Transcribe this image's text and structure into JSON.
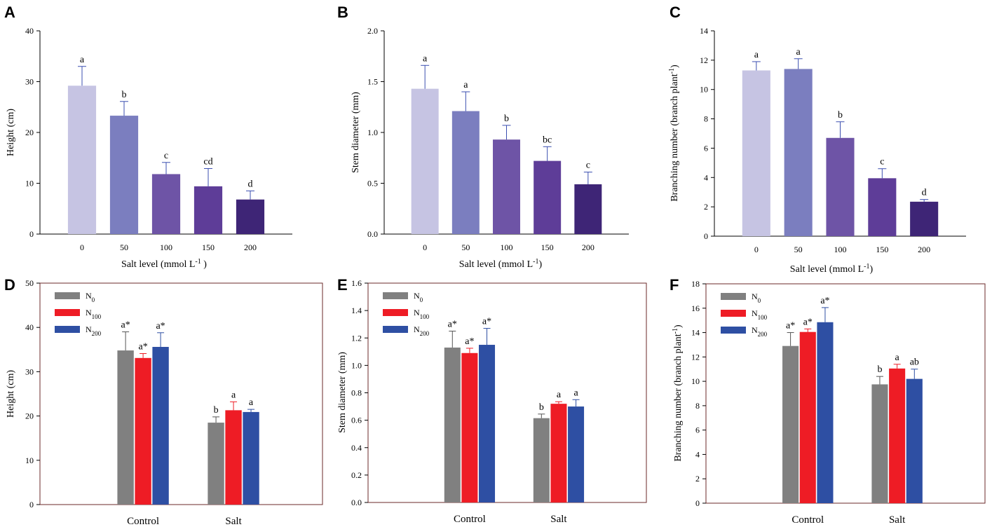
{
  "chart_data": [
    {
      "panel": "A",
      "type": "bar",
      "xlabel": "Salt level (mmol L",
      "xlabel_sup": "-1",
      "xlabel_end": " )",
      "ylabel": "Height (cm)",
      "ylim": [
        0,
        40
      ],
      "yticks": [
        "0",
        "10",
        "20",
        "30",
        "40"
      ],
      "categories": [
        "0",
        "50",
        "100",
        "150",
        "200"
      ],
      "values": [
        29.2,
        23.3,
        11.8,
        9.4,
        6.8
      ],
      "errors": [
        3.8,
        2.8,
        2.3,
        3.5,
        1.7
      ],
      "labels": [
        "a",
        "b",
        "c",
        "cd",
        "d"
      ],
      "colors": [
        "#c6c4e3",
        "#7b7ebf",
        "#6e54a6",
        "#5e3d98",
        "#3e2576"
      ]
    },
    {
      "panel": "B",
      "type": "bar",
      "xlabel": "Salt level (mmol L",
      "xlabel_sup": "-1",
      "xlabel_end": ")",
      "ylabel": "Stem diameter (mm)",
      "ylim": [
        0,
        2.0
      ],
      "yticks": [
        "0.0",
        "0.5",
        "1.0",
        "1.5",
        "2.0"
      ],
      "categories": [
        "0",
        "50",
        "100",
        "150",
        "200"
      ],
      "values": [
        1.43,
        1.21,
        0.93,
        0.72,
        0.49
      ],
      "errors": [
        0.23,
        0.19,
        0.14,
        0.14,
        0.12
      ],
      "labels": [
        "a",
        "a",
        "b",
        "bc",
        "c"
      ],
      "colors": [
        "#c6c4e3",
        "#7b7ebf",
        "#6e54a6",
        "#5e3d98",
        "#3e2576"
      ]
    },
    {
      "panel": "C",
      "type": "bar",
      "xlabel": "Salt level (mmol L",
      "xlabel_sup": "-1",
      "xlabel_end": ")",
      "ylabel": "Branching number (branch plant",
      "ylabel_sup": "-1",
      "ylabel_end": ")",
      "ylim": [
        0,
        14
      ],
      "yticks": [
        "0",
        "2",
        "4",
        "6",
        "8",
        "10",
        "12",
        "14"
      ],
      "categories": [
        "0",
        "50",
        "100",
        "150",
        "200"
      ],
      "values": [
        11.3,
        11.4,
        6.7,
        3.95,
        2.35
      ],
      "errors": [
        0.6,
        0.7,
        1.1,
        0.65,
        0.15
      ],
      "labels": [
        "a",
        "a",
        "b",
        "c",
        "d"
      ],
      "colors": [
        "#c6c4e3",
        "#7b7ebf",
        "#6e54a6",
        "#5e3d98",
        "#3e2576"
      ]
    },
    {
      "panel": "D",
      "type": "bar",
      "ylabel": "Height (cm)",
      "ylim": [
        0,
        50
      ],
      "yticks": [
        "0",
        "10",
        "20",
        "30",
        "40",
        "50"
      ],
      "categories": [
        "Control",
        "Salt"
      ],
      "legend": [
        {
          "base": "N",
          "sub": "0"
        },
        {
          "base": "N",
          "sub": "100"
        },
        {
          "base": "N",
          "sub": "200"
        }
      ],
      "series": [
        {
          "name": "N0",
          "color": "#808080",
          "values": [
            34.8,
            18.5
          ],
          "errors": [
            4.2,
            1.3
          ],
          "labels": [
            "a*",
            "b"
          ]
        },
        {
          "name": "N100",
          "color": "#ee1c25",
          "values": [
            33.1,
            21.3
          ],
          "errors": [
            1.0,
            1.9
          ],
          "labels": [
            "a*",
            "a"
          ]
        },
        {
          "name": "N200",
          "color": "#2e4fa3",
          "values": [
            35.6,
            20.9
          ],
          "errors": [
            3.2,
            0.6
          ],
          "labels": [
            "a*",
            "a"
          ]
        }
      ]
    },
    {
      "panel": "E",
      "type": "bar",
      "ylabel": "Stem diameter (mm)",
      "ylim": [
        0,
        1.6
      ],
      "yticks": [
        "0.0",
        "0.2",
        "0.4",
        "0.6",
        "0.8",
        "1.0",
        "1.2",
        "1.4",
        "1.6"
      ],
      "categories": [
        "Control",
        "Salt"
      ],
      "legend": [
        {
          "base": "N",
          "sub": "0"
        },
        {
          "base": "N",
          "sub": "100"
        },
        {
          "base": "N",
          "sub": "200"
        }
      ],
      "series": [
        {
          "name": "N0",
          "color": "#808080",
          "values": [
            1.13,
            0.615
          ],
          "errors": [
            0.12,
            0.03
          ],
          "labels": [
            "a*",
            "b"
          ]
        },
        {
          "name": "N100",
          "color": "#ee1c25",
          "values": [
            1.09,
            0.72
          ],
          "errors": [
            0.035,
            0.015
          ],
          "labels": [
            "a*",
            "a"
          ]
        },
        {
          "name": "N200",
          "color": "#2e4fa3",
          "values": [
            1.15,
            0.7
          ],
          "errors": [
            0.12,
            0.05
          ],
          "labels": [
            "a*",
            "a"
          ]
        }
      ]
    },
    {
      "panel": "F",
      "type": "bar",
      "ylabel": "Branching number (branch plant",
      "ylabel_sup": "-1",
      "ylabel_end": ")",
      "ylim": [
        0,
        18
      ],
      "yticks": [
        "0",
        "2",
        "4",
        "6",
        "8",
        "10",
        "12",
        "14",
        "16",
        "18"
      ],
      "categories": [
        "Control",
        "Salt"
      ],
      "legend": [
        {
          "base": "N",
          "sub": "0"
        },
        {
          "base": "N",
          "sub": "100"
        },
        {
          "base": "N",
          "sub": "200"
        }
      ],
      "series": [
        {
          "name": "N0",
          "color": "#808080",
          "values": [
            12.9,
            9.75
          ],
          "errors": [
            1.1,
            0.65
          ],
          "labels": [
            "a*",
            "b"
          ]
        },
        {
          "name": "N100",
          "color": "#ee1c25",
          "values": [
            14.05,
            11.05
          ],
          "errors": [
            0.25,
            0.35
          ],
          "labels": [
            "a*",
            "a"
          ]
        },
        {
          "name": "N200",
          "color": "#2e4fa3",
          "values": [
            14.85,
            10.2
          ],
          "errors": [
            1.2,
            0.8
          ],
          "labels": [
            "a*",
            "ab"
          ]
        }
      ]
    }
  ]
}
